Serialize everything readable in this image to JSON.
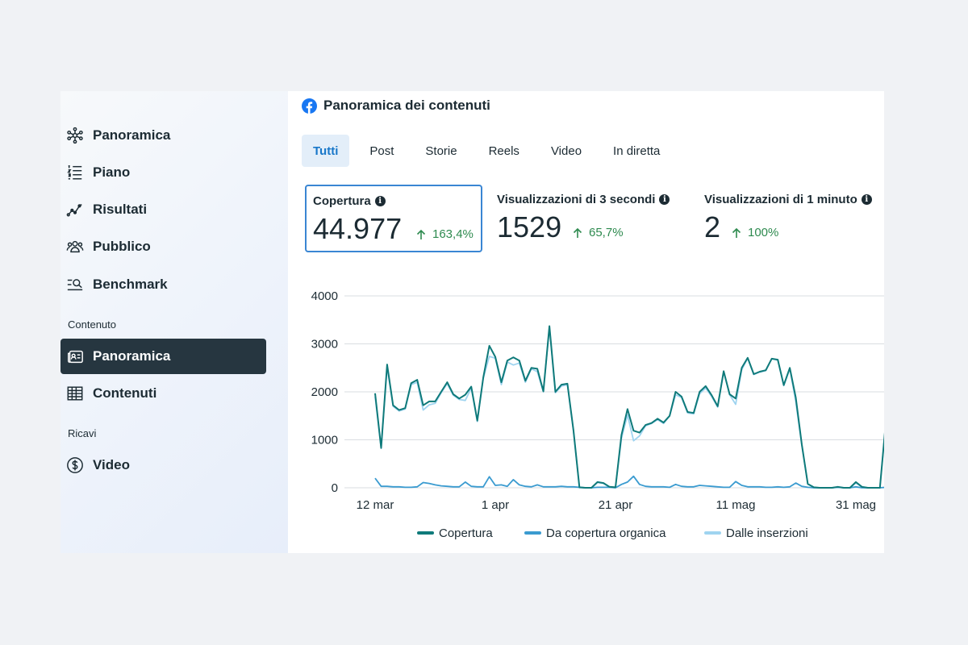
{
  "sidebar": {
    "items": [
      {
        "label": "Panoramica",
        "icon": "network-icon"
      },
      {
        "label": "Piano",
        "icon": "list-icon"
      },
      {
        "label": "Risultati",
        "icon": "trend-icon"
      },
      {
        "label": "Pubblico",
        "icon": "people-icon"
      },
      {
        "label": "Benchmark",
        "icon": "benchmark-search-icon"
      }
    ],
    "section_content": "Contenuto",
    "content_items": [
      {
        "label": "Panoramica",
        "icon": "content-card-icon",
        "active": true
      },
      {
        "label": "Contenuti",
        "icon": "table-icon"
      }
    ],
    "section_revenue": "Ricavi",
    "revenue_items": [
      {
        "label": "Video",
        "icon": "dollar-icon"
      }
    ]
  },
  "header": {
    "title": "Panoramica dei contenuti",
    "icon": "facebook-icon"
  },
  "tabs": [
    {
      "label": "Tutti",
      "active": true
    },
    {
      "label": "Post"
    },
    {
      "label": "Storie"
    },
    {
      "label": "Reels"
    },
    {
      "label": "Video"
    },
    {
      "label": "In diretta"
    }
  ],
  "metrics": [
    {
      "title": "Copertura",
      "value": "44.977",
      "delta": "163,4%",
      "selected": true
    },
    {
      "title": "Visualizzazioni di 3 secondi",
      "value": "1529",
      "delta": "65,7%"
    },
    {
      "title": "Visualizzazioni di 1 minuto",
      "value": "2",
      "delta": "100%"
    }
  ],
  "colors": {
    "accent": "#1877c9",
    "active_nav": "#263640",
    "positive": "#2e8a4f",
    "series_copertura": "#0f7a7a",
    "series_organica": "#3a9bd0",
    "series_inserzioni": "#9fd4f0"
  },
  "chart_data": {
    "type": "line",
    "ylim": [
      0,
      4000
    ],
    "yticks": [
      "4000",
      "3000",
      "2000",
      "1000",
      "0"
    ],
    "ytick_values": [
      4000,
      3000,
      2000,
      1000,
      0
    ],
    "xticks": [
      {
        "label": "12 mar",
        "index": 0
      },
      {
        "label": "1 apr",
        "index": 20
      },
      {
        "label": "21 apr",
        "index": 40
      },
      {
        "label": "11 mag",
        "index": 60
      },
      {
        "label": "31 mag",
        "index": 80
      }
    ],
    "grid": true,
    "legend_position": "bottom",
    "series": [
      {
        "name": "Copertura",
        "color": "#0f7a7a",
        "values": [
          1970,
          830,
          2570,
          1720,
          1620,
          1660,
          2180,
          2250,
          1720,
          1800,
          1800,
          2000,
          2200,
          1950,
          1860,
          1940,
          2110,
          1400,
          2300,
          2960,
          2730,
          2200,
          2650,
          2720,
          2650,
          2230,
          2500,
          2480,
          2010,
          3370,
          2000,
          2150,
          2170,
          1200,
          10,
          0,
          0,
          120,
          100,
          20,
          10,
          1100,
          1640,
          1190,
          1150,
          1310,
          1350,
          1440,
          1360,
          1500,
          2000,
          1900,
          1580,
          1560,
          2000,
          2120,
          1930,
          1700,
          2430,
          1950,
          1860,
          2500,
          2710,
          2370,
          2420,
          2450,
          2690,
          2670,
          2140,
          2500,
          1880,
          900,
          80,
          10,
          0,
          0,
          0,
          20,
          0,
          0,
          120,
          20,
          0,
          0,
          0,
          1400
        ],
        "x_start": 0
      },
      {
        "name": "Da copertura organica",
        "color": "#3a9bd0",
        "values": [
          200,
          30,
          30,
          20,
          20,
          10,
          10,
          20,
          110,
          90,
          60,
          40,
          30,
          20,
          20,
          120,
          30,
          20,
          20,
          230,
          50,
          60,
          30,
          170,
          60,
          30,
          20,
          60,
          20,
          20,
          20,
          30,
          20,
          20,
          10,
          0,
          0,
          10,
          10,
          10,
          0,
          70,
          120,
          240,
          70,
          30,
          20,
          20,
          20,
          10,
          70,
          30,
          20,
          20,
          50,
          40,
          30,
          20,
          10,
          10,
          130,
          50,
          20,
          20,
          20,
          10,
          10,
          20,
          10,
          20,
          100,
          30,
          10,
          0,
          0,
          0,
          0,
          10,
          0,
          0,
          20,
          0,
          0,
          0,
          0,
          10
        ],
        "x_start": 0
      },
      {
        "name": "Dalle inserzioni",
        "color": "#9fd4f0",
        "values": [
          1900,
          820,
          2520,
          1700,
          1600,
          1640,
          2150,
          2200,
          1620,
          1730,
          1760,
          1980,
          2170,
          1930,
          1840,
          1820,
          2080,
          1380,
          2280,
          2740,
          2700,
          2150,
          2620,
          2560,
          2600,
          2200,
          2480,
          2420,
          2000,
          3350,
          1980,
          2120,
          2150,
          1180,
          0,
          0,
          0,
          110,
          90,
          10,
          10,
          1030,
          1520,
          980,
          1080,
          1290,
          1340,
          1420,
          1340,
          1500,
          1940,
          1880,
          1560,
          1540,
          1960,
          2080,
          1900,
          1680,
          2420,
          1940,
          1740,
          2460,
          2700,
          2360,
          2410,
          2440,
          2690,
          2660,
          2130,
          2480,
          1790,
          880,
          80,
          10,
          0,
          0,
          0,
          10,
          0,
          0,
          100,
          20,
          0,
          0,
          0,
          1390
        ],
        "x_start": 0
      }
    ]
  }
}
